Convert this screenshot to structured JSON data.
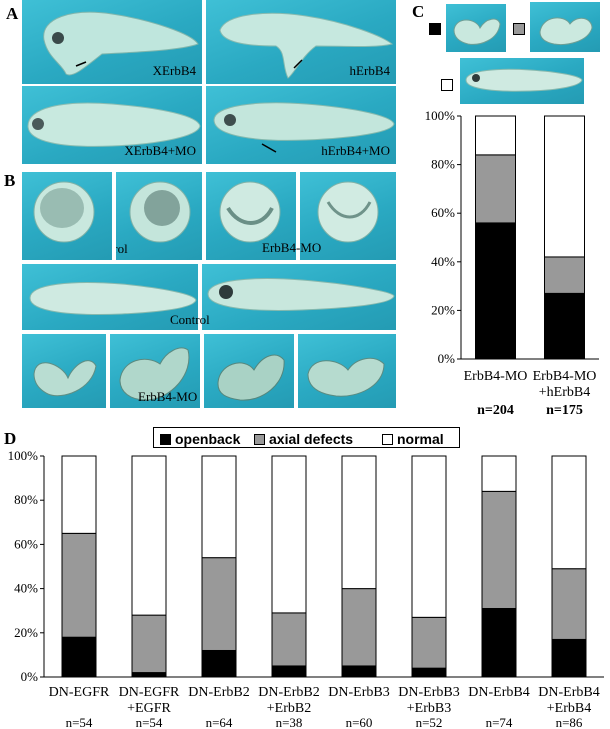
{
  "panel_labels": {
    "a": "A",
    "b": "B",
    "c": "C",
    "d": "D"
  },
  "panel_a": {
    "captions": [
      "XErbB4",
      "hErbB4",
      "XErbB4+MO",
      "hErbB4+MO"
    ]
  },
  "panel_b": {
    "captions": [
      "Control",
      "ErbB4-MO",
      "Control",
      "ErbB4-MO"
    ]
  },
  "colors": {
    "openback": "#000000",
    "axial_defects": "#999999",
    "normal": "#ffffff",
    "photo_bg": "#2aa9c2"
  },
  "legend": {
    "openback": "openback",
    "axial_defects": "axial defects",
    "normal": "normal"
  },
  "chart_data": [
    {
      "type": "bar",
      "stacked": true,
      "panel": "C",
      "categories": [
        "ErbB4-MO",
        "ErbB4-MO\n+hErbB4"
      ],
      "counts": [
        "n=204",
        "n=175"
      ],
      "series": [
        {
          "values": [
            56,
            27
          ]
        },
        {
          "values": [
            28,
            15
          ]
        },
        {
          "values": [
            16,
            58
          ]
        }
      ],
      "yticks": [
        "0%",
        "20%",
        "40%",
        "60%",
        "80%",
        "100%"
      ],
      "ylim": [
        0,
        100
      ],
      "legend": "photo keys above chart"
    },
    {
      "type": "bar",
      "stacked": true,
      "panel": "D",
      "categories": [
        "DN-EGFR",
        "DN-EGFR\n+EGFR",
        "DN-ErbB2",
        "DN-ErbB2\n+ErbB2",
        "DN-ErbB3",
        "DN-ErbB3\n+ErbB3",
        "DN-ErbB4",
        "DN-ErbB4\n+ErbB4"
      ],
      "counts": [
        "n=54",
        "n=54",
        "n=64",
        "n=38",
        "n=60",
        "n=52",
        "n=74",
        "n=86"
      ],
      "series": [
        {
          "name": "openback",
          "values": [
            18,
            2,
            12,
            5,
            5,
            4,
            31,
            17
          ]
        },
        {
          "name": "axial defects",
          "values": [
            47,
            26,
            42,
            24,
            35,
            23,
            53,
            32
          ]
        },
        {
          "name": "normal",
          "values": [
            35,
            72,
            46,
            71,
            60,
            73,
            16,
            51
          ]
        }
      ],
      "yticks": [
        "0%",
        "20%",
        "40%",
        "60%",
        "80%",
        "100%"
      ],
      "ylim": [
        0,
        100
      ],
      "legend": "top"
    }
  ]
}
